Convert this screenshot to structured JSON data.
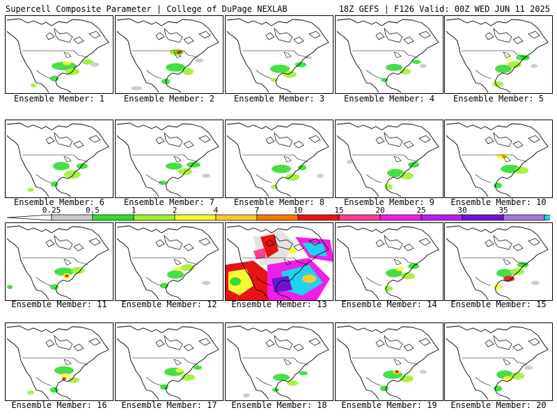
{
  "header": {
    "title": "Supercell Composite Parameter | College of DuPage NEXLAB",
    "valid": "18Z GEFS | F126 Valid: 00Z WED JUN 11 2025"
  },
  "members": [
    {
      "label": "Ensemble Member: 1"
    },
    {
      "label": "Ensemble Member: 2"
    },
    {
      "label": "Ensemble Member: 3"
    },
    {
      "label": "Ensemble Member: 4"
    },
    {
      "label": "Ensemble Member: 5"
    },
    {
      "label": "Ensemble Member: 6"
    },
    {
      "label": "Ensemble Member: 7"
    },
    {
      "label": "Ensemble Member: 8"
    },
    {
      "label": "Ensemble Member: 9"
    },
    {
      "label": "Ensemble Member: 10"
    },
    {
      "label": "Ensemble Member: 11"
    },
    {
      "label": "Ensemble Member: 12"
    },
    {
      "label": "Ensemble Member: 13"
    },
    {
      "label": "Ensemble Member: 14"
    },
    {
      "label": "Ensemble Member: 15"
    },
    {
      "label": "Ensemble Member: 16"
    },
    {
      "label": "Ensemble Member: 17"
    },
    {
      "label": "Ensemble Member: 18"
    },
    {
      "label": "Ensemble Member: 19"
    },
    {
      "label": "Ensemble Member: 20"
    }
  ],
  "colorbar": {
    "thresholds": [
      "0.25",
      "0.5",
      "1",
      "2",
      "4",
      "7",
      "10",
      "15",
      "20",
      "25",
      "30",
      "35"
    ],
    "colors": [
      "#c8c8c8",
      "#32dc32",
      "#a0f032",
      "#fafa32",
      "#fac832",
      "#fa7800",
      "#e61414",
      "#ff3c96",
      "#f01ee6",
      "#b41ef0",
      "#6e14d2",
      "#a078dc",
      "#1ed2f0"
    ]
  }
}
